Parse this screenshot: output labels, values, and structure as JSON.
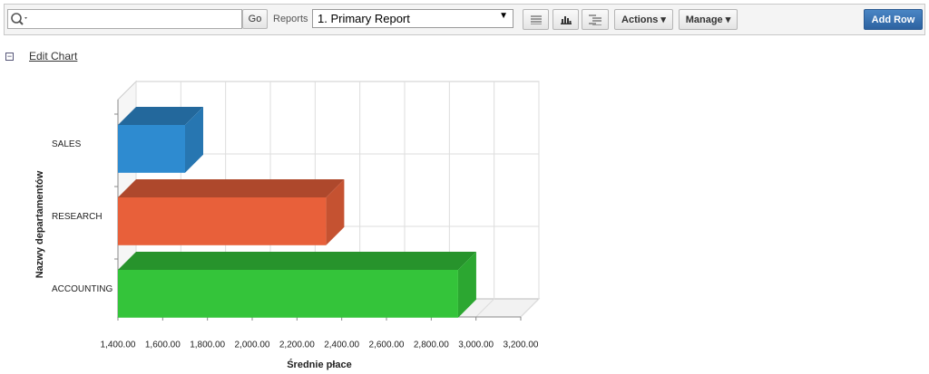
{
  "toolbar": {
    "go": "Go",
    "reports_label": "Reports",
    "report_select": "1. Primary Report",
    "actions": "Actions",
    "manage": "Manage",
    "add_row": "Add Row"
  },
  "edit_chart": "Edit Chart",
  "chart_data": {
    "type": "bar",
    "orientation": "horizontal",
    "x_label": "Średnie płace",
    "y_label": "Nazwy departamentów",
    "categories": [
      "SALES",
      "RESEARCH",
      "ACCOUNTING"
    ],
    "values": [
      1700,
      2330,
      2920
    ],
    "colors": [
      "#2e8bd0",
      "#e8603a",
      "#34c43a"
    ],
    "xlim": [
      1400,
      3200
    ],
    "xticks": [
      {
        "value": 1400,
        "label": "1,400.00"
      },
      {
        "value": 1600,
        "label": "1,600.00"
      },
      {
        "value": 1800,
        "label": "1,800.00"
      },
      {
        "value": 2000,
        "label": "2,000.00"
      },
      {
        "value": 2200,
        "label": "2,200.00"
      },
      {
        "value": 2400,
        "label": "2,400.00"
      },
      {
        "value": 2600,
        "label": "2,600.00"
      },
      {
        "value": 2800,
        "label": "2,800.00"
      },
      {
        "value": 3000,
        "label": "3,000.00"
      },
      {
        "value": 3200,
        "label": "3,200.00"
      }
    ],
    "grid": true
  }
}
